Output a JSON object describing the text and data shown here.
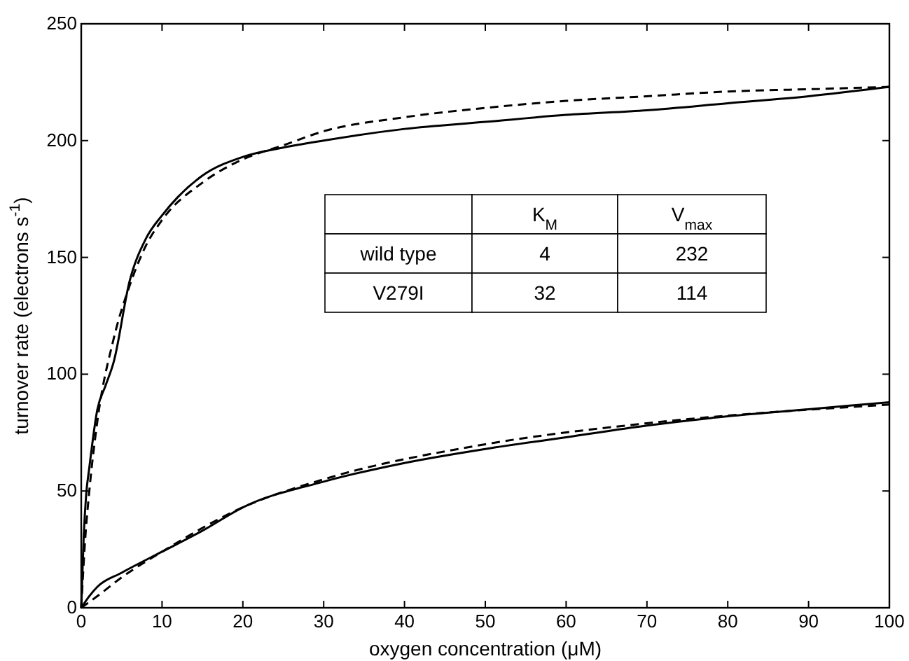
{
  "chart_data": {
    "type": "line",
    "xlabel": "oxygen concentration (μM)",
    "ylabel": "turnover rate (electrons s$^{-1}$)",
    "xlim": [
      0,
      100
    ],
    "ylim": [
      0,
      250
    ],
    "xticks": [
      0,
      10,
      20,
      30,
      40,
      50,
      60,
      70,
      80,
      90,
      100
    ],
    "yticks": [
      0,
      50,
      100,
      150,
      200,
      250
    ],
    "grid": false,
    "series": [
      {
        "color": "#000000",
        "line_style": "solid",
        "x": [
          0,
          0.3,
          0.6,
          1,
          2,
          3,
          4,
          6,
          8,
          10,
          12,
          15,
          20,
          25,
          30,
          40,
          50,
          60,
          70,
          80,
          90,
          100
        ],
        "values": [
          0,
          30,
          48,
          60,
          85,
          95,
          105,
          140,
          158,
          168,
          176,
          185,
          193,
          197,
          200,
          205,
          208,
          211,
          213,
          216,
          219,
          223
        ]
      },
      {
        "color": "#000000",
        "line_style": "dashed",
        "x": [
          0,
          0.5,
          1,
          2,
          4,
          6,
          8,
          10,
          15,
          20,
          25,
          30,
          40,
          50,
          60,
          70,
          80,
          90,
          100
        ],
        "values": [
          0,
          30,
          50,
          80,
          115,
          138,
          155,
          166,
          182,
          192,
          198,
          204,
          210,
          214,
          217,
          219,
          221,
          222,
          223
        ]
      },
      {
        "color": "#000000",
        "line_style": "solid",
        "x": [
          0,
          1,
          2,
          5,
          10,
          15,
          20,
          30,
          40,
          50,
          60,
          70,
          80,
          90,
          100
        ],
        "values": [
          0,
          5,
          9,
          15,
          24,
          33,
          43,
          54,
          62,
          68,
          73,
          78,
          82,
          85,
          88
        ]
      },
      {
        "color": "#000000",
        "line_style": "dashed",
        "x": [
          0,
          2,
          5,
          10,
          20,
          30,
          50,
          70,
          100
        ],
        "values": [
          0,
          5,
          13,
          24,
          43,
          55,
          70,
          79,
          87
        ]
      }
    ],
    "annotations": [
      "K$_{M}$",
      "V$_{max}$",
      "wild type",
      "4",
      "232",
      "V279I",
      "32",
      "114"
    ]
  }
}
